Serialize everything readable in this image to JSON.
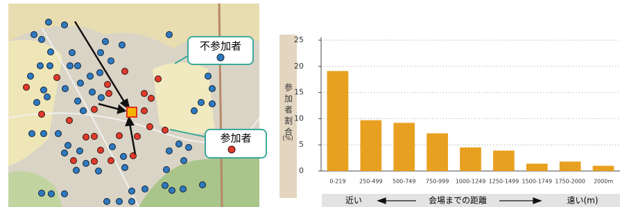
{
  "map": {
    "non_participant": "不参加者",
    "participant": "参加者"
  },
  "chart_data": {
    "type": "bar",
    "y_label": "参加者割合",
    "y_unit": "(%)",
    "x_axis": {
      "near": "近い",
      "label": "会場までの距離",
      "far": "遠い(m)"
    },
    "categories": [
      "0-219",
      "250-499",
      "500-749",
      "750-999",
      "1000-1249",
      "1250-1499",
      "1500-1749",
      "1750-2000",
      "2000m"
    ],
    "values": [
      19.1,
      9.7,
      9.2,
      7.2,
      4.5,
      3.9,
      1.4,
      1.8,
      1.0
    ],
    "color": "#e8a020",
    "ylim": [
      0,
      25
    ],
    "yticks": [
      0,
      5,
      10,
      15,
      20,
      25
    ],
    "grid": true
  }
}
